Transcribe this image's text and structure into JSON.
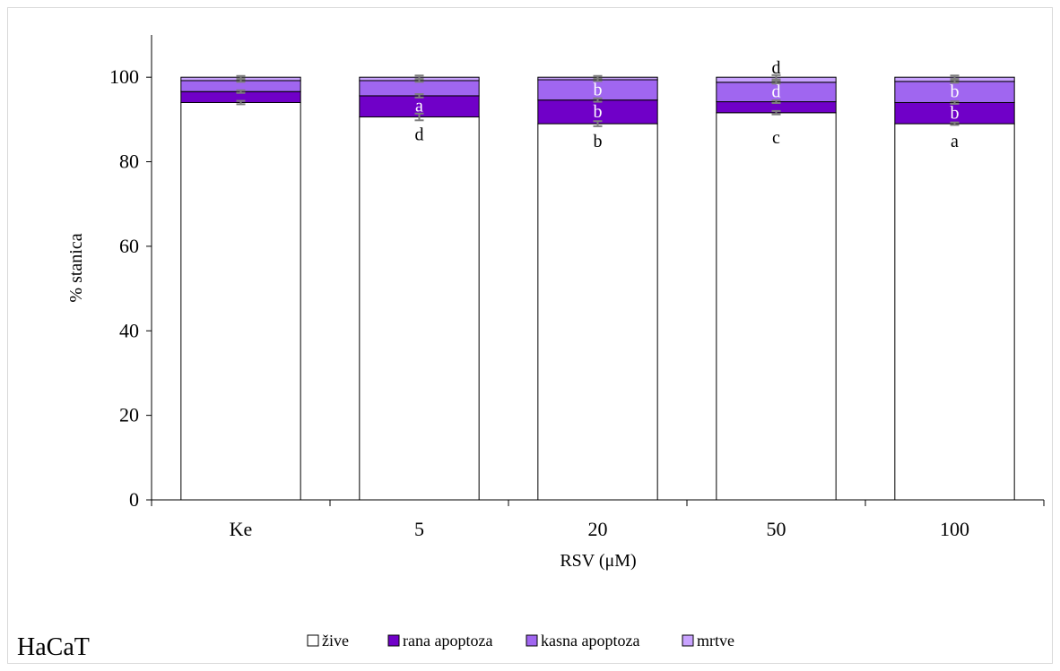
{
  "chart_data": {
    "type": "bar",
    "stacked": true,
    "categories": [
      "Ke",
      "5",
      "20",
      "50",
      "100"
    ],
    "series": [
      {
        "name": "žive",
        "color": "#ffffff",
        "values": [
          94.0,
          90.6,
          89.0,
          91.6,
          89.0
        ],
        "errors": [
          0.4,
          0.8,
          0.6,
          0.4,
          0.3
        ]
      },
      {
        "name": "rana apoptoza",
        "color": "#7000c8",
        "values": [
          2.6,
          5.0,
          5.6,
          2.6,
          5.0
        ],
        "errors": [
          0.3,
          0.4,
          0.4,
          0.3,
          0.3
        ]
      },
      {
        "name": "kasna apoptoza",
        "color": "#a066f0",
        "values": [
          2.6,
          3.6,
          4.8,
          4.6,
          5.0
        ],
        "errors": [
          0.3,
          0.3,
          0.3,
          0.3,
          0.3
        ]
      },
      {
        "name": "mrtve",
        "color": "#c9a3ff",
        "values": [
          0.8,
          0.8,
          0.6,
          1.2,
          1.0
        ],
        "errors": [
          0.3,
          0.4,
          0.3,
          0.5,
          0.4
        ]
      }
    ],
    "ylabel": "% stanica",
    "xlabel": "RSV (μM)",
    "ylim": [
      0,
      110
    ],
    "yticks": [
      0,
      20,
      40,
      60,
      80,
      100
    ],
    "grid": false,
    "legend_position": "bottom",
    "annotations": [
      {
        "category": "5",
        "text": "a",
        "position": "inside-rana",
        "color": "#ffffff"
      },
      {
        "category": "5",
        "text": "d",
        "position": "below-zive",
        "color": "#000000"
      },
      {
        "category": "20",
        "text": "b",
        "position": "inside-kasna",
        "color": "#ffffff"
      },
      {
        "category": "20",
        "text": "b",
        "position": "inside-rana",
        "color": "#ffffff"
      },
      {
        "category": "20",
        "text": "b",
        "position": "below-zive",
        "color": "#000000"
      },
      {
        "category": "50",
        "text": "d",
        "position": "above-top",
        "color": "#000000"
      },
      {
        "category": "50",
        "text": "d",
        "position": "inside-kasna",
        "color": "#ffffff"
      },
      {
        "category": "50",
        "text": "c",
        "position": "below-zive-far",
        "color": "#000000",
        "font": "sans"
      },
      {
        "category": "100",
        "text": "b",
        "position": "inside-kasna",
        "color": "#ffffff"
      },
      {
        "category": "100",
        "text": "b",
        "position": "inside-rana",
        "color": "#ffffff"
      },
      {
        "category": "100",
        "text": "a",
        "position": "below-zive",
        "color": "#000000"
      }
    ],
    "panel_label": "HaCaT"
  }
}
